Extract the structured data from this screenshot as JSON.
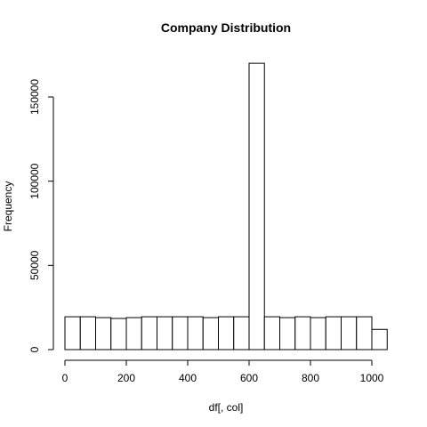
{
  "chart_data": {
    "type": "bar",
    "subtype": "histogram",
    "title": "Company  Distribution",
    "xlabel": "df[, col]",
    "ylabel": "Frequency",
    "grid": false,
    "bin_width": 50,
    "bins": [
      {
        "from": 0,
        "to": 50,
        "value": 19500
      },
      {
        "from": 50,
        "to": 100,
        "value": 19500
      },
      {
        "from": 100,
        "to": 150,
        "value": 19000
      },
      {
        "from": 150,
        "to": 200,
        "value": 18500
      },
      {
        "from": 200,
        "to": 250,
        "value": 19000
      },
      {
        "from": 250,
        "to": 300,
        "value": 19500
      },
      {
        "from": 300,
        "to": 350,
        "value": 19500
      },
      {
        "from": 350,
        "to": 400,
        "value": 19500
      },
      {
        "from": 400,
        "to": 450,
        "value": 19500
      },
      {
        "from": 450,
        "to": 500,
        "value": 19000
      },
      {
        "from": 500,
        "to": 550,
        "value": 19500
      },
      {
        "from": 550,
        "to": 600,
        "value": 19500
      },
      {
        "from": 600,
        "to": 650,
        "value": 170000
      },
      {
        "from": 650,
        "to": 700,
        "value": 19500
      },
      {
        "from": 700,
        "to": 750,
        "value": 19000
      },
      {
        "from": 750,
        "to": 800,
        "value": 19500
      },
      {
        "from": 800,
        "to": 850,
        "value": 19000
      },
      {
        "from": 850,
        "to": 900,
        "value": 19500
      },
      {
        "from": 900,
        "to": 950,
        "value": 19500
      },
      {
        "from": 950,
        "to": 1000,
        "value": 19500
      },
      {
        "from": 1000,
        "to": 1050,
        "value": 12000
      }
    ],
    "xlim": [
      0,
      1050
    ],
    "ylim": [
      0,
      170000
    ],
    "x_ticks": [
      0,
      200,
      400,
      600,
      800,
      1000
    ],
    "y_ticks": [
      0,
      50000,
      100000,
      150000
    ]
  }
}
